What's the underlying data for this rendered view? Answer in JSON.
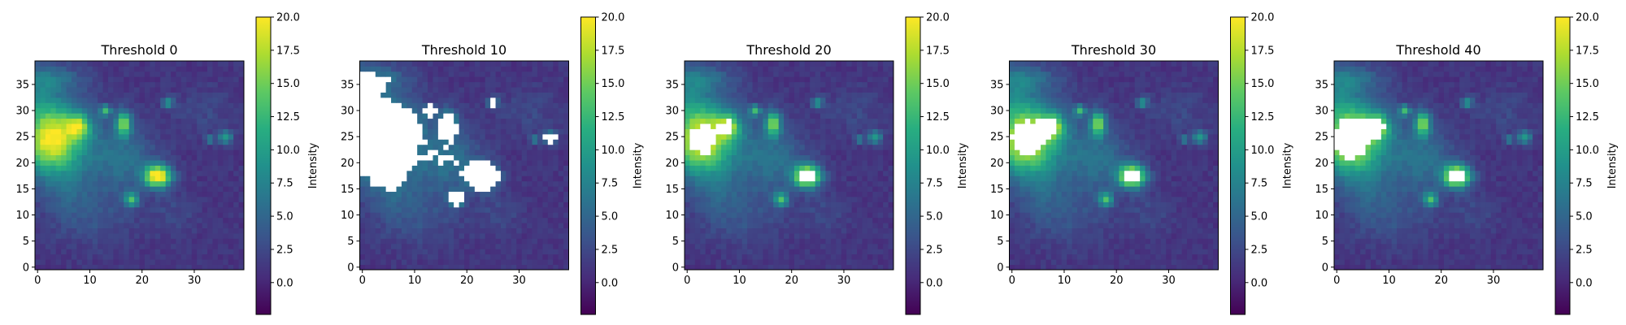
{
  "chart_data": {
    "type": "heatmap",
    "colormap": "viridis",
    "grid_size": [
      40,
      40
    ],
    "x_ticks": [
      0,
      10,
      20,
      30
    ],
    "y_ticks": [
      0,
      5,
      10,
      15,
      20,
      25,
      30,
      35
    ],
    "xlim": [
      -0.5,
      39.5
    ],
    "ylim": [
      -0.5,
      39.5
    ],
    "colorbar": {
      "label": "Intensity",
      "range": [
        -2.4,
        20.0
      ],
      "ticks": [
        "0.0",
        "2.5",
        "5.0",
        "7.5",
        "10.0",
        "12.5",
        "15.0",
        "17.5",
        "20.0"
      ]
    },
    "masked_color": "#ffffff",
    "background_level": 1.0,
    "blobs": [
      {
        "x": 2.5,
        "y": 23.5,
        "sx": 4.0,
        "sy": 4.0,
        "amp": 16.0
      },
      {
        "x": 6.0,
        "y": 28.0,
        "sx": 3.0,
        "sy": 3.0,
        "amp": 6.0
      },
      {
        "x": 8.0,
        "y": 27.0,
        "sx": 1.4,
        "sy": 1.4,
        "amp": 9.0
      },
      {
        "x": 0.5,
        "y": 31.0,
        "sx": 2.5,
        "sy": 5.0,
        "amp": 6.0
      },
      {
        "x": 4.0,
        "y": 36.0,
        "sx": 4.0,
        "sy": 2.0,
        "amp": 4.0
      },
      {
        "x": 12.0,
        "y": 22.0,
        "sx": 5.0,
        "sy": 5.0,
        "amp": 3.5
      },
      {
        "x": 13.0,
        "y": 30.0,
        "sx": 0.8,
        "sy": 0.8,
        "amp": 10.0
      },
      {
        "x": 16.5,
        "y": 27.5,
        "sx": 1.0,
        "sy": 1.7,
        "amp": 14.0
      },
      {
        "x": 23.0,
        "y": 17.5,
        "sx": 1.8,
        "sy": 1.5,
        "amp": 20.0
      },
      {
        "x": 18.0,
        "y": 13.0,
        "sx": 0.9,
        "sy": 0.9,
        "amp": 11.0
      },
      {
        "x": 25.0,
        "y": 31.5,
        "sx": 0.8,
        "sy": 0.8,
        "amp": 8.0
      },
      {
        "x": 36.0,
        "y": 25.0,
        "sx": 0.9,
        "sy": 0.9,
        "amp": 9.0
      },
      {
        "x": 33.0,
        "y": 24.5,
        "sx": 0.6,
        "sy": 0.6,
        "amp": 7.0
      },
      {
        "x": 10.0,
        "y": 10.0,
        "sx": 6.0,
        "sy": 4.0,
        "amp": 2.5
      },
      {
        "x": 18.0,
        "y": 20.0,
        "sx": 4.0,
        "sy": 4.0,
        "amp": 3.0
      },
      {
        "x": 26.0,
        "y": 10.0,
        "sx": 3.0,
        "sy": 3.0,
        "amp": 1.5
      },
      {
        "x": 5.0,
        "y": 15.0,
        "sx": 3.0,
        "sy": 3.0,
        "amp": 2.5
      },
      {
        "x": 32.0,
        "y": 30.0,
        "sx": 4.0,
        "sy": 3.0,
        "amp": 1.5
      }
    ],
    "panels": [
      {
        "title": "Threshold 0",
        "threshold": 0
      },
      {
        "title": "Threshold 10",
        "threshold": 10
      },
      {
        "title": "Threshold 20",
        "threshold": 20
      },
      {
        "title": "Threshold 30",
        "threshold": 30
      },
      {
        "title": "Threshold 40",
        "threshold": 40
      }
    ]
  }
}
